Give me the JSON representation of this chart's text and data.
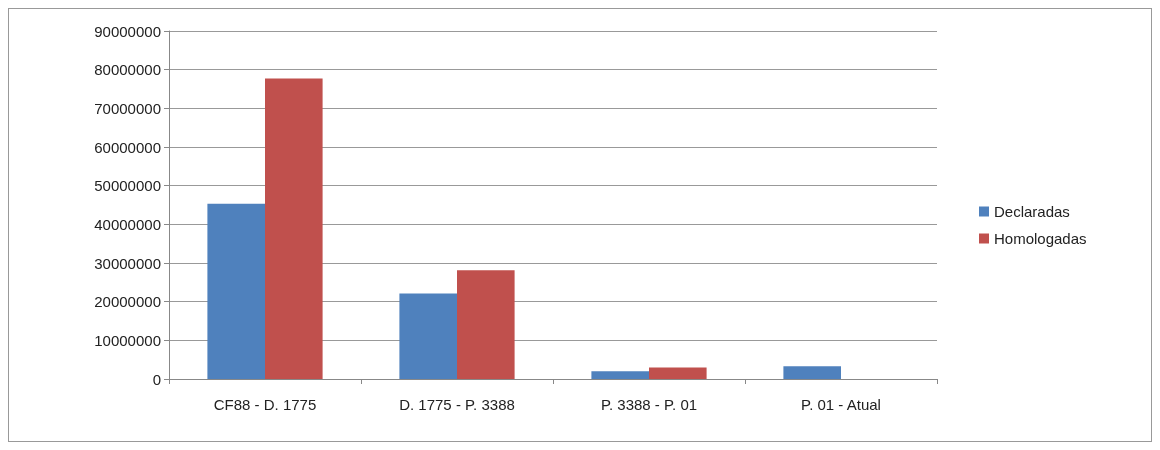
{
  "chart_data": {
    "type": "bar",
    "categories": [
      "CF88 - D. 1775",
      "D. 1775 - P. 3388",
      "P. 3388 - P. 01",
      "P. 01 - Atual"
    ],
    "series": [
      {
        "name": "Declaradas",
        "color": "#4f81bd",
        "values": [
          45300000,
          22100000,
          2000000,
          3300000
        ]
      },
      {
        "name": "Homologadas",
        "color": "#c0504d",
        "values": [
          77700000,
          28100000,
          3000000,
          null
        ]
      }
    ],
    "ylim": [
      0,
      90000000
    ],
    "yticks": [
      0,
      10000000,
      20000000,
      30000000,
      40000000,
      50000000,
      60000000,
      70000000,
      80000000,
      90000000
    ],
    "grid": "y",
    "legend": "right"
  }
}
